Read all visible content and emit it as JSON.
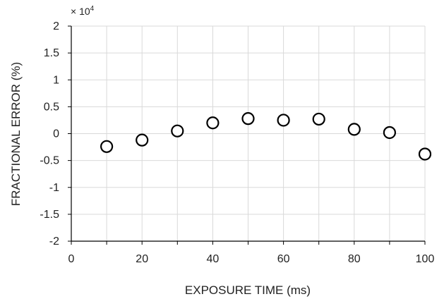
{
  "chart_data": {
    "type": "scatter",
    "xlabel": "EXPOSURE TIME (ms)",
    "ylabel": "FRACTIONAL ERROR (%)",
    "multiplier_label": "× 10",
    "multiplier_exp": "4",
    "xlim": [
      0,
      100
    ],
    "ylim": [
      -2,
      2
    ],
    "xticks": [
      0,
      20,
      40,
      60,
      80,
      100
    ],
    "yticks": [
      -2,
      -1.5,
      -1,
      -0.5,
      0,
      0.5,
      1,
      1.5,
      2
    ],
    "ytick_labels": [
      "-2",
      "-1.5",
      "-1",
      "-0.5",
      "0",
      "0.5",
      "1",
      "1.5",
      "2"
    ],
    "grid": true,
    "x": [
      10,
      20,
      30,
      40,
      50,
      60,
      70,
      80,
      90,
      100
    ],
    "y": [
      -0.24,
      -0.12,
      0.05,
      0.2,
      0.28,
      0.25,
      0.27,
      0.08,
      0.02,
      -0.38
    ],
    "marker": "open-circle",
    "grid_color": "#d9d9d9",
    "axis_color": "#000000",
    "marker_color": "#000000"
  }
}
